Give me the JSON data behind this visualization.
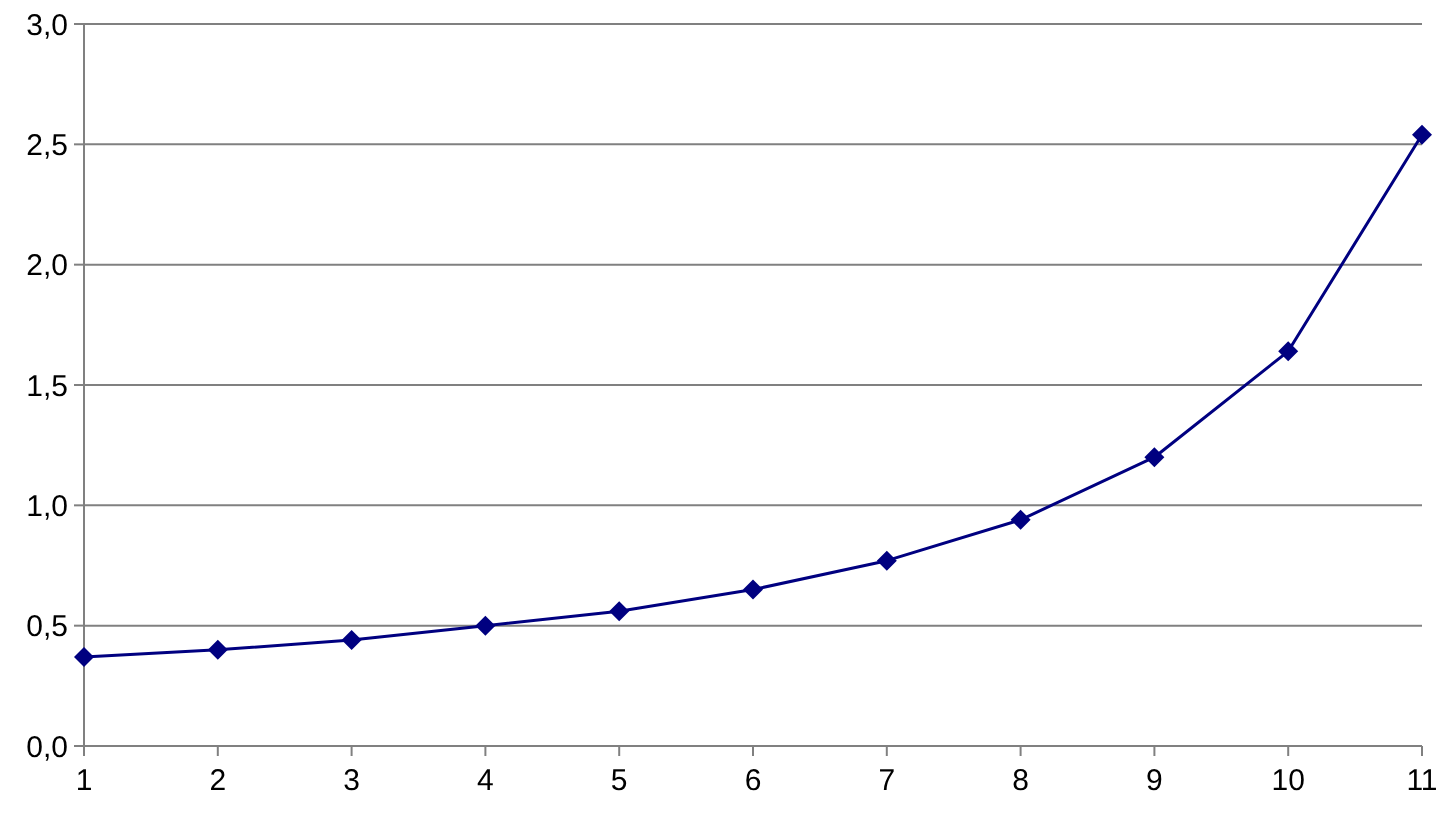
{
  "chart_data": {
    "type": "line",
    "categories": [
      "1",
      "2",
      "3",
      "4",
      "5",
      "6",
      "7",
      "8",
      "9",
      "10",
      "11"
    ],
    "series": [
      {
        "color": "#000080",
        "values": [
          0.37,
          0.4,
          0.44,
          0.5,
          0.56,
          0.65,
          0.77,
          0.94,
          1.2,
          1.64,
          2.54
        ]
      }
    ],
    "ylim": [
      0,
      3
    ],
    "yticks": [
      {
        "value": 0,
        "label": "0,0"
      },
      {
        "value": 0.5,
        "label": "0,5"
      },
      {
        "value": 1,
        "label": "1,0"
      },
      {
        "value": 1.5,
        "label": "1,5"
      },
      {
        "value": 2,
        "label": "2,0"
      },
      {
        "value": 2.5,
        "label": "2,5"
      },
      {
        "value": 3,
        "label": "3,0"
      }
    ],
    "grid": "y",
    "marker": "diamond",
    "line_style": "solid"
  }
}
